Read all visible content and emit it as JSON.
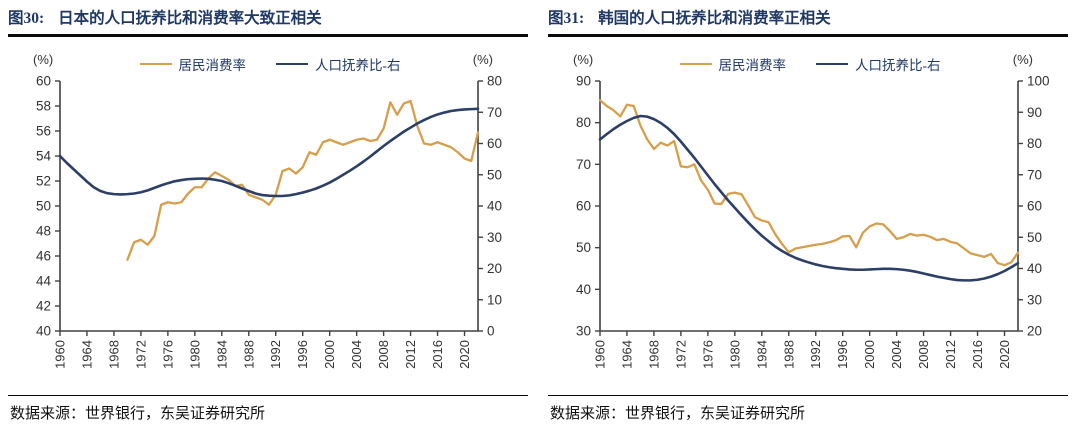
{
  "colors": {
    "consumption_line": "#D79E4B",
    "dependency_line": "#2C3F66",
    "title_navy": "#1F3864",
    "rule_black": "#0a0a0a",
    "axis_gray": "#404040"
  },
  "panels": [
    {
      "fig_label": "图30:",
      "title": "日本的人口抚养比和消费率大致正相关",
      "source": "数据来源：世界银行，东吴证券研究所"
    },
    {
      "fig_label": "图31:",
      "title": "韩国的人口抚养比和消费率正相关",
      "source": "数据来源：世界银行，东吴证券研究所"
    }
  ],
  "chart_data": [
    {
      "type": "line",
      "title": "图30: 日本的人口抚养比和消费率大致正相关",
      "x_range": [
        1960,
        2022
      ],
      "x_ticks": [
        1960,
        1964,
        1968,
        1972,
        1976,
        1980,
        1984,
        1988,
        1992,
        1996,
        2000,
        2004,
        2008,
        2012,
        2016,
        2020
      ],
      "left_axis": {
        "label": "(%)",
        "min": 40,
        "max": 60,
        "ticks": [
          40,
          42,
          44,
          46,
          48,
          50,
          52,
          54,
          56,
          58,
          60
        ]
      },
      "right_axis": {
        "label": "(%)",
        "min": 0,
        "max": 80,
        "ticks": [
          0,
          10,
          20,
          30,
          40,
          50,
          60,
          70,
          80
        ]
      },
      "grid": false,
      "legend_position": "top-center",
      "series": [
        {
          "name": "居民消费率",
          "axis": "left",
          "color": "#D79E4B",
          "start_year": 1970,
          "values": [
            45.7,
            47.1,
            47.3,
            46.9,
            47.6,
            50.1,
            50.3,
            50.2,
            50.3,
            51.0,
            51.5,
            51.5,
            52.2,
            52.7,
            52.4,
            52.1,
            51.6,
            51.7,
            50.9,
            50.7,
            50.5,
            50.1,
            50.9,
            52.8,
            53.0,
            52.6,
            53.1,
            54.3,
            54.1,
            55.1,
            55.3,
            55.1,
            54.9,
            55.1,
            55.3,
            55.4,
            55.2,
            55.3,
            56.2,
            58.3,
            57.3,
            58.2,
            58.4,
            56.4,
            55.0,
            54.9,
            55.1,
            54.9,
            54.7,
            54.3,
            53.8,
            53.6,
            55.9
          ]
        },
        {
          "name": "人口抚养比-右",
          "axis": "right",
          "color": "#2C3F66",
          "start_year": 1960,
          "values": [
            56.0,
            53.8,
            51.8,
            49.8,
            47.8,
            46.0,
            44.8,
            44.1,
            43.8,
            43.7,
            43.8,
            44.0,
            44.4,
            45.0,
            45.8,
            46.6,
            47.3,
            47.9,
            48.3,
            48.6,
            48.7,
            48.8,
            48.7,
            48.4,
            48.0,
            47.3,
            46.5,
            45.6,
            44.8,
            44.0,
            43.5,
            43.3,
            43.2,
            43.2,
            43.4,
            43.8,
            44.3,
            44.9,
            45.6,
            46.5,
            47.5,
            48.7,
            50.0,
            51.3,
            52.7,
            54.2,
            55.8,
            57.5,
            59.2,
            60.8,
            62.3,
            63.8,
            65.1,
            66.4,
            67.5,
            68.5,
            69.3,
            69.9,
            70.4,
            70.7,
            70.9,
            71.0,
            71.1
          ]
        }
      ]
    },
    {
      "type": "line",
      "title": "图31: 韩国的人口抚养比和消费率正相关",
      "x_range": [
        1960,
        2022
      ],
      "x_ticks": [
        1960,
        1964,
        1968,
        1972,
        1976,
        1980,
        1984,
        1988,
        1992,
        1996,
        2000,
        2004,
        2008,
        2012,
        2016,
        2020
      ],
      "left_axis": {
        "label": "(%)",
        "min": 30,
        "max": 90,
        "ticks": [
          30,
          40,
          50,
          60,
          70,
          80,
          90
        ]
      },
      "right_axis": {
        "label": "(%)",
        "min": 20,
        "max": 100,
        "ticks": [
          20,
          30,
          40,
          50,
          60,
          70,
          80,
          90,
          100
        ]
      },
      "grid": false,
      "legend_position": "top-center",
      "series": [
        {
          "name": "居民消费率",
          "axis": "left",
          "color": "#D79E4B",
          "start_year": 1960,
          "values": [
            85.4,
            84.0,
            83.0,
            81.5,
            84.3,
            84.0,
            79.3,
            76.0,
            73.7,
            75.2,
            74.5,
            75.6,
            69.5,
            69.3,
            70.0,
            66.1,
            63.9,
            60.6,
            60.5,
            62.9,
            63.2,
            62.8,
            60.1,
            57.3,
            56.5,
            56.1,
            53.2,
            50.9,
            48.9,
            49.8,
            50.1,
            50.4,
            50.7,
            50.9,
            51.3,
            51.8,
            52.7,
            52.8,
            50.1,
            53.6,
            55.1,
            55.8,
            55.6,
            54.0,
            52.1,
            52.5,
            53.3,
            52.9,
            53.1,
            52.6,
            51.8,
            52.1,
            51.4,
            51.0,
            49.8,
            48.6,
            48.2,
            47.8,
            48.5,
            46.3,
            45.8,
            46.5,
            48.8
          ]
        },
        {
          "name": "人口抚养比-右",
          "axis": "right",
          "color": "#2C3F66",
          "start_year": 1960,
          "values": [
            81.3,
            83.0,
            84.6,
            86.0,
            87.2,
            88.2,
            88.8,
            88.6,
            87.8,
            86.6,
            85.0,
            83.0,
            80.6,
            78.0,
            75.4,
            72.6,
            69.8,
            67.0,
            64.4,
            61.8,
            59.4,
            57.0,
            54.7,
            52.5,
            50.5,
            48.7,
            47.0,
            45.6,
            44.4,
            43.4,
            42.6,
            41.9,
            41.3,
            40.8,
            40.4,
            40.1,
            39.9,
            39.7,
            39.6,
            39.6,
            39.7,
            39.8,
            39.9,
            39.9,
            39.8,
            39.6,
            39.3,
            38.9,
            38.4,
            37.9,
            37.4,
            37.0,
            36.6,
            36.3,
            36.2,
            36.2,
            36.4,
            36.8,
            37.4,
            38.2,
            39.2,
            40.4,
            41.7
          ]
        }
      ]
    }
  ]
}
